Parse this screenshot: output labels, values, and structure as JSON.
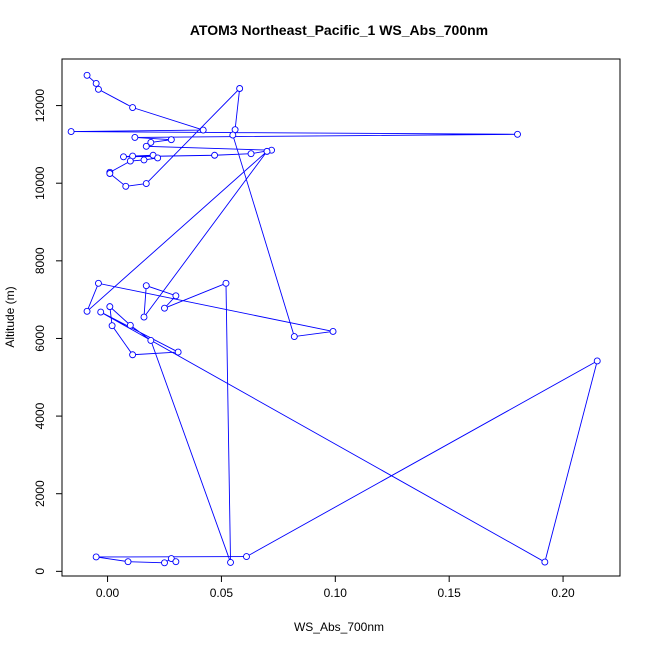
{
  "chart_data": {
    "type": "line",
    "title": "ATOM3 Northeast_Pacific_1 WS_Abs_700nm",
    "xlabel": "WS_Abs_700nm",
    "ylabel": "Altitude (m)",
    "xlim": [
      -0.02,
      0.225
    ],
    "ylim": [
      -120,
      13200
    ],
    "x_ticks": [
      0.0,
      0.05,
      0.1,
      0.15,
      0.2
    ],
    "x_tick_labels": [
      "0.00",
      "0.05",
      "0.10",
      "0.15",
      "0.20"
    ],
    "y_ticks": [
      0,
      2000,
      4000,
      6000,
      8000,
      10000,
      12000
    ],
    "y_tick_labels": [
      "0",
      "2000",
      "4000",
      "6000",
      "8000",
      "10000",
      "12000"
    ],
    "grid": false,
    "series_color": "#0000ff",
    "series": [
      {
        "markers": "open-circle",
        "points": [
          [
            -0.009,
            12780
          ],
          [
            -0.005,
            12570
          ],
          [
            -0.004,
            12420
          ],
          [
            0.011,
            11950
          ],
          [
            0.042,
            11370
          ],
          [
            -0.016,
            11330
          ],
          [
            0.18,
            11260
          ],
          [
            0.012,
            11180
          ],
          [
            0.028,
            11120
          ],
          [
            0.019,
            11050
          ],
          [
            0.017,
            10950
          ],
          [
            0.072,
            10850
          ],
          [
            0.063,
            10760
          ],
          [
            0.047,
            10720
          ],
          [
            0.007,
            10680
          ],
          [
            0.011,
            10700
          ],
          [
            0.02,
            10720
          ],
          [
            0.022,
            10650
          ],
          [
            0.016,
            10600
          ],
          [
            0.01,
            10570
          ],
          [
            0.001,
            10280
          ],
          [
            0.001,
            10250
          ],
          [
            0.008,
            9920
          ],
          [
            0.017,
            9990
          ],
          [
            0.058,
            12440
          ],
          [
            0.056,
            11380
          ],
          [
            0.055,
            11240
          ],
          [
            0.082,
            6050
          ],
          [
            0.099,
            6180
          ],
          [
            -0.004,
            7420
          ],
          [
            -0.009,
            6700
          ],
          [
            0.07,
            10820
          ],
          [
            0.016,
            6550
          ],
          [
            0.017,
            7360
          ],
          [
            0.03,
            7100
          ],
          [
            0.025,
            6780
          ],
          [
            0.052,
            7420
          ],
          [
            0.054,
            230
          ],
          [
            0.019,
            5950
          ],
          [
            0.01,
            6340
          ],
          [
            0.001,
            6820
          ],
          [
            0.002,
            6330
          ],
          [
            0.011,
            5580
          ],
          [
            0.031,
            5650
          ],
          [
            -0.003,
            6680
          ],
          [
            0.192,
            240
          ],
          [
            0.215,
            5420
          ],
          [
            0.061,
            380
          ],
          [
            -0.005,
            370
          ],
          [
            0.009,
            250
          ],
          [
            0.025,
            220
          ],
          [
            0.028,
            330
          ],
          [
            0.03,
            250
          ]
        ]
      }
    ]
  }
}
